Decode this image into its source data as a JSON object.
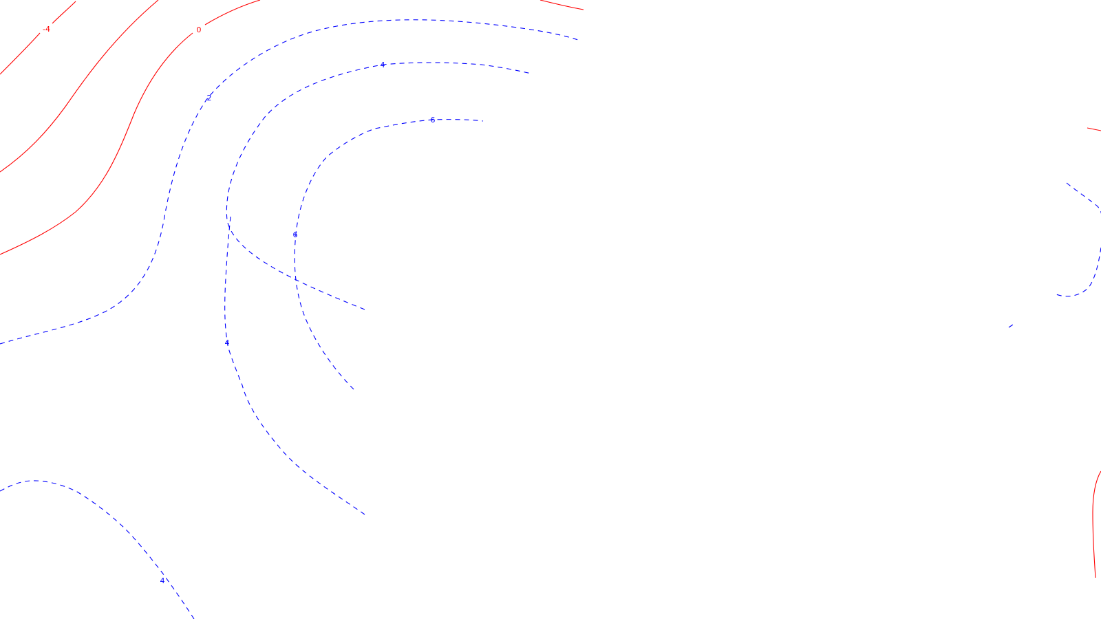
{
  "colors": {
    "negative_and_zero": "#ff0000",
    "positive": "#0000ff",
    "background": "#ffffff"
  },
  "labels": {
    "neg4": "-4",
    "zero": "0",
    "pos2": "2",
    "pos4_top": "4",
    "pos6_top": "6",
    "pos6_left": "6",
    "pos4_mid": "4",
    "pos4_bottom": "4"
  }
}
